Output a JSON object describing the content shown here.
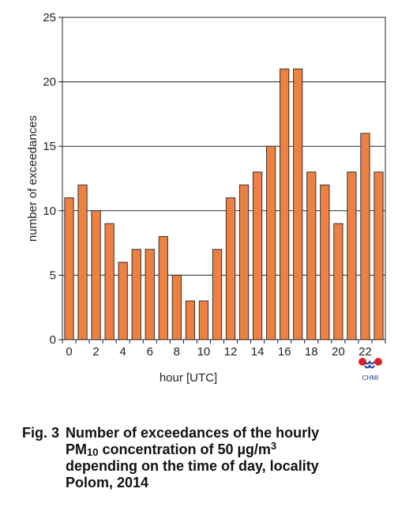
{
  "chart_data": {
    "type": "bar",
    "categories": [
      "0",
      "1",
      "2",
      "3",
      "4",
      "5",
      "6",
      "7",
      "8",
      "9",
      "10",
      "11",
      "12",
      "13",
      "14",
      "15",
      "16",
      "17",
      "18",
      "19",
      "20",
      "21",
      "22",
      "23"
    ],
    "values": [
      11,
      12,
      10,
      9,
      6,
      7,
      7,
      8,
      5,
      3,
      3,
      7,
      11,
      12,
      13,
      15,
      21,
      21,
      13,
      12,
      9,
      13,
      16,
      13
    ],
    "xtick_labels": [
      "0",
      "2",
      "4",
      "6",
      "8",
      "10",
      "12",
      "14",
      "16",
      "18",
      "20",
      "22"
    ],
    "xtick_positions": [
      0,
      2,
      4,
      6,
      8,
      10,
      12,
      14,
      16,
      18,
      20,
      22
    ],
    "yticks": [
      0,
      5,
      10,
      15,
      20,
      25
    ],
    "ylim": [
      0,
      25
    ],
    "xlabel": "hour [UTC]",
    "ylabel": "number of exceedances",
    "grid": true,
    "bar_color": "#ee8142",
    "bar_edge_color": "#333333"
  },
  "logo": {
    "text": "CHMI",
    "colors": [
      "#e02020",
      "#1a3f8f"
    ]
  },
  "caption": {
    "label": "Fig. 3",
    "line1": "Number of exceedances of the hourly",
    "pm": "PM",
    "pm_sub": "10",
    "conc_text": " concentration of 50 µg/m",
    "unit_sup": "3",
    "line3": "depending on the time of day, locality",
    "line4": "Polom, 2014"
  }
}
